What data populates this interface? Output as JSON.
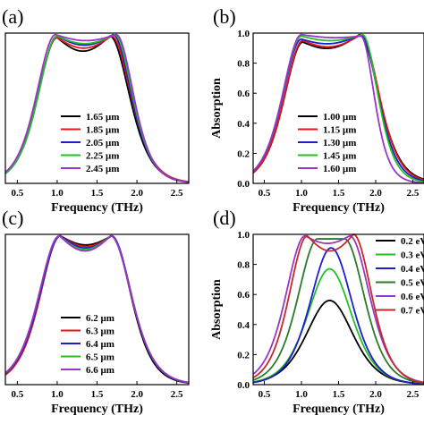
{
  "chart_data": [
    {
      "id": "a",
      "panel_label": "(a)",
      "type": "line",
      "xlabel": "Frequency (THz)",
      "ylabel": "",
      "xlim": [
        0.35,
        2.65
      ],
      "ylim": [
        0,
        1.0
      ],
      "xticks": [
        0.5,
        1.0,
        1.5,
        2.0,
        2.5
      ],
      "xtick_labels": [
        "0.5",
        "1.0",
        "1.5",
        "2.0",
        "2.5"
      ],
      "yticks": [],
      "ytick_labels": [],
      "legend_position": "lower-center",
      "series": [
        {
          "name": "1.65 μm",
          "color": "#000000",
          "f1": 1.0,
          "f2": 1.66,
          "a1": 0.97,
          "a2": 0.98,
          "dip": 0.88,
          "w1": 0.33,
          "w2": 0.33
        },
        {
          "name": "1.85 μm",
          "color": "#e8141a",
          "f1": 1.0,
          "f2": 1.68,
          "a1": 0.97,
          "a2": 0.98,
          "dip": 0.9,
          "w1": 0.33,
          "w2": 0.33
        },
        {
          "name": "2.05 μm",
          "color": "#1c1cd0",
          "f1": 1.0,
          "f2": 1.7,
          "a1": 0.98,
          "a2": 0.99,
          "dip": 0.92,
          "w1": 0.32,
          "w2": 0.31
        },
        {
          "name": "2.25 μm",
          "color": "#22c022",
          "f1": 1.0,
          "f2": 1.72,
          "a1": 0.98,
          "a2": 0.99,
          "dip": 0.93,
          "w1": 0.32,
          "w2": 0.3
        },
        {
          "name": "2.45 μm",
          "color": "#9a35c8",
          "f1": 0.98,
          "f2": 1.74,
          "a1": 0.99,
          "a2": 0.99,
          "dip": 0.95,
          "w1": 0.32,
          "w2": 0.29
        }
      ]
    },
    {
      "id": "b",
      "panel_label": "(b)",
      "type": "line",
      "xlabel": "Frequency (THz)",
      "ylabel": "Absorption",
      "xlim": [
        0.35,
        2.65
      ],
      "ylim": [
        0,
        1.0
      ],
      "xticks": [
        0.5,
        1.0,
        1.5,
        2.0,
        2.5
      ],
      "xtick_labels": [
        "0.5",
        "1.0",
        "1.5",
        "2.0",
        "2.5"
      ],
      "yticks": [
        0,
        0.2,
        0.4,
        0.6,
        0.8,
        1.0
      ],
      "ytick_labels": [
        "0.0",
        "0.2",
        "0.4",
        "0.6",
        "0.8",
        "1.0"
      ],
      "legend_position": "lower-right",
      "series": [
        {
          "name": "1.00 μm",
          "color": "#000000",
          "f1": 1.02,
          "f2": 1.78,
          "a1": 0.94,
          "a2": 0.99,
          "dip": 0.9,
          "w1": 0.34,
          "w2": 0.35
        },
        {
          "name": "1.15 μm",
          "color": "#e8141a",
          "f1": 1.02,
          "f2": 1.8,
          "a1": 0.95,
          "a2": 0.99,
          "dip": 0.91,
          "w1": 0.34,
          "w2": 0.33
        },
        {
          "name": "1.30 μm",
          "color": "#1c1cd0",
          "f1": 1.0,
          "f2": 1.8,
          "a1": 0.96,
          "a2": 0.99,
          "dip": 0.93,
          "w1": 0.34,
          "w2": 0.31
        },
        {
          "name": "1.45 μm",
          "color": "#22c022",
          "f1": 1.0,
          "f2": 1.82,
          "a1": 0.98,
          "a2": 0.99,
          "dip": 0.95,
          "w1": 0.34,
          "w2": 0.28
        },
        {
          "name": "1.60 μm",
          "color": "#9a35c8",
          "f1": 1.0,
          "f2": 1.8,
          "a1": 0.99,
          "a2": 0.98,
          "dip": 0.97,
          "w1": 0.34,
          "w2": 0.24
        }
      ]
    },
    {
      "id": "c",
      "panel_label": "(c)",
      "type": "line",
      "xlabel": "Frequency (THz)",
      "ylabel": "",
      "xlim": [
        0.35,
        2.65
      ],
      "ylim": [
        0,
        1.0
      ],
      "xticks": [
        0.5,
        1.0,
        1.5,
        2.0,
        2.5
      ],
      "xtick_labels": [
        "0.5",
        "1.0",
        "1.5",
        "2.0",
        "2.5"
      ],
      "yticks": [],
      "ytick_labels": [],
      "legend_position": "lower-center",
      "series": [
        {
          "name": "6.2 μm",
          "color": "#000000",
          "f1": 1.04,
          "f2": 1.68,
          "a1": 0.99,
          "a2": 0.99,
          "dip": 0.93,
          "w1": 0.34,
          "w2": 0.33
        },
        {
          "name": "6.3 μm",
          "color": "#e8141a",
          "f1": 1.04,
          "f2": 1.68,
          "a1": 0.99,
          "a2": 0.99,
          "dip": 0.92,
          "w1": 0.34,
          "w2": 0.34
        },
        {
          "name": "6.4 μm",
          "color": "#1c1cd0",
          "f1": 1.04,
          "f2": 1.68,
          "a1": 0.99,
          "a2": 0.99,
          "dip": 0.91,
          "w1": 0.35,
          "w2": 0.34
        },
        {
          "name": "6.5 μm",
          "color": "#22c022",
          "f1": 1.03,
          "f2": 1.67,
          "a1": 0.99,
          "a2": 0.99,
          "dip": 0.9,
          "w1": 0.35,
          "w2": 0.35
        },
        {
          "name": "6.6 μm",
          "color": "#9a35c8",
          "f1": 1.03,
          "f2": 1.67,
          "a1": 0.99,
          "a2": 0.99,
          "dip": 0.89,
          "w1": 0.35,
          "w2": 0.35
        }
      ]
    },
    {
      "id": "d",
      "panel_label": "(d)",
      "type": "line",
      "xlabel": "Frequency (THz)",
      "ylabel": "Absorption",
      "xlim": [
        0.35,
        2.65
      ],
      "ylim": [
        0,
        1.0
      ],
      "xticks": [
        0.5,
        1.0,
        1.5,
        2.0,
        2.5
      ],
      "xtick_labels": [
        "0.5",
        "1.0",
        "1.5",
        "2.0",
        "2.5"
      ],
      "yticks": [
        0,
        0.2,
        0.4,
        0.6,
        0.8,
        1.0
      ],
      "ytick_labels": [
        "0.0",
        "0.2",
        "0.4",
        "0.6",
        "0.8",
        "1.0"
      ],
      "legend_position": "upper-right",
      "series": [
        {
          "name": "0.2 eV",
          "color": "#000000",
          "f1": 1.38,
          "f2": 1.38,
          "a1": 0.56,
          "a2": 0.56,
          "dip": 0.56,
          "w1": 0.42,
          "w2": 0.42
        },
        {
          "name": "0.3 eV",
          "color": "#22c022",
          "f1": 1.38,
          "f2": 1.38,
          "a1": 0.77,
          "a2": 0.77,
          "dip": 0.77,
          "w1": 0.4,
          "w2": 0.4
        },
        {
          "name": "0.4 eV",
          "color": "#1c1cd0",
          "f1": 1.4,
          "f2": 1.4,
          "a1": 0.91,
          "a2": 0.91,
          "dip": 0.91,
          "w1": 0.38,
          "w2": 0.38
        },
        {
          "name": "0.5 eV",
          "color": "#2a7a2a",
          "f1": 1.22,
          "f2": 1.58,
          "a1": 0.97,
          "a2": 0.97,
          "dip": 0.97,
          "w1": 0.36,
          "w2": 0.36
        },
        {
          "name": "0.6 eV",
          "color": "#9a35c8",
          "f1": 1.05,
          "f2": 1.65,
          "a1": 0.99,
          "a2": 0.99,
          "dip": 0.94,
          "w1": 0.35,
          "w2": 0.36
        },
        {
          "name": "0.7 eV",
          "color": "#c42a2a",
          "f1": 1.08,
          "f2": 1.7,
          "a1": 0.99,
          "a2": 1.0,
          "dip": 0.89,
          "w1": 0.33,
          "w2": 0.33
        }
      ]
    }
  ]
}
